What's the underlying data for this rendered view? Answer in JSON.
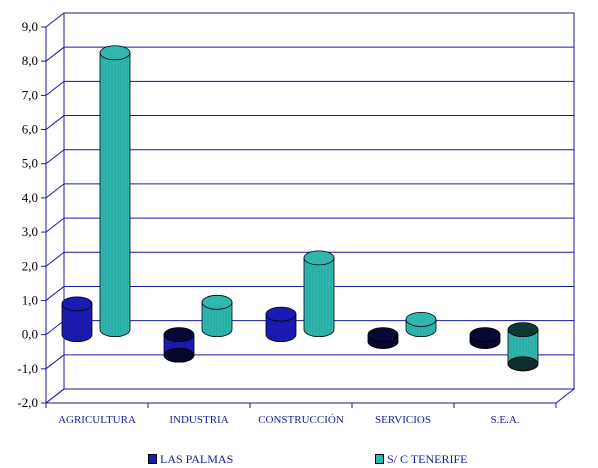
{
  "chart_data": {
    "type": "bar",
    "title": "",
    "xlabel": "",
    "ylabel": "",
    "ylim": [
      -2.0,
      9.0
    ],
    "yticks": [
      "9,0",
      "8,0",
      "7,0",
      "6,0",
      "5,0",
      "4,0",
      "3,0",
      "2,0",
      "1,0",
      "0,0",
      "-1,0",
      "-2,0"
    ],
    "categories": [
      "AGRICULTURA",
      "INDUSTRIA",
      "CONSTRUCCIÓN",
      "SERVICIOS",
      "S.E.A."
    ],
    "series": [
      {
        "name": "LAS PALMAS",
        "values": [
          0.9,
          -0.6,
          0.6,
          -0.2,
          -0.2
        ],
        "color": "#1b1bb4"
      },
      {
        "name": "S/ C TENERIFE",
        "values": [
          8.1,
          0.8,
          2.1,
          0.3,
          -1.0
        ],
        "color": "#2fb8b0"
      }
    ],
    "grid": true,
    "legend_position": "bottom"
  }
}
